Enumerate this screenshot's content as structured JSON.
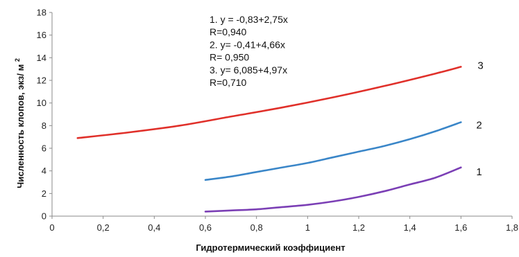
{
  "chart_data": {
    "type": "line",
    "title": "",
    "xlabel": "Гидротермический коэффициент",
    "ylabel": "Численность клопов, экз/ м",
    "ylabel_superscript": "2",
    "xlim": [
      0,
      1.8
    ],
    "ylim": [
      0,
      18
    ],
    "x_ticks": [
      "0",
      "0,2",
      "0,4",
      "0,6",
      "0,8",
      "1",
      "1,2",
      "1,4",
      "1,6",
      "1,8"
    ],
    "y_ticks": [
      "0",
      "2",
      "4",
      "6",
      "8",
      "10",
      "12",
      "14",
      "16",
      "18"
    ],
    "grid": false,
    "legend": "none",
    "series": [
      {
        "label": "1",
        "color": "#7b3fb5",
        "x": [
          0.6,
          0.7,
          0.8,
          0.9,
          1.0,
          1.1,
          1.2,
          1.3,
          1.4,
          1.5,
          1.6
        ],
        "y": [
          0.4,
          0.5,
          0.6,
          0.8,
          1.0,
          1.3,
          1.7,
          2.2,
          2.8,
          3.4,
          4.3
        ]
      },
      {
        "label": "2",
        "color": "#3a86c8",
        "x": [
          0.6,
          0.7,
          0.8,
          0.9,
          1.0,
          1.1,
          1.2,
          1.3,
          1.4,
          1.5,
          1.6
        ],
        "y": [
          3.2,
          3.5,
          3.9,
          4.3,
          4.7,
          5.2,
          5.7,
          6.2,
          6.8,
          7.5,
          8.3
        ]
      },
      {
        "label": "3",
        "color": "#e0302a",
        "x": [
          0.1,
          0.3,
          0.5,
          0.7,
          0.9,
          1.1,
          1.3,
          1.5,
          1.6
        ],
        "y": [
          6.9,
          7.4,
          8.0,
          8.8,
          9.6,
          10.5,
          11.5,
          12.6,
          13.2
        ]
      }
    ],
    "annotations": [
      "1. y = -0,83+2,75x",
      "R=0,940",
      "2. y= -0,41+4,66x",
      "R= 0,950",
      "3. y= 6,085+4,97x",
      "R=0,710"
    ]
  }
}
